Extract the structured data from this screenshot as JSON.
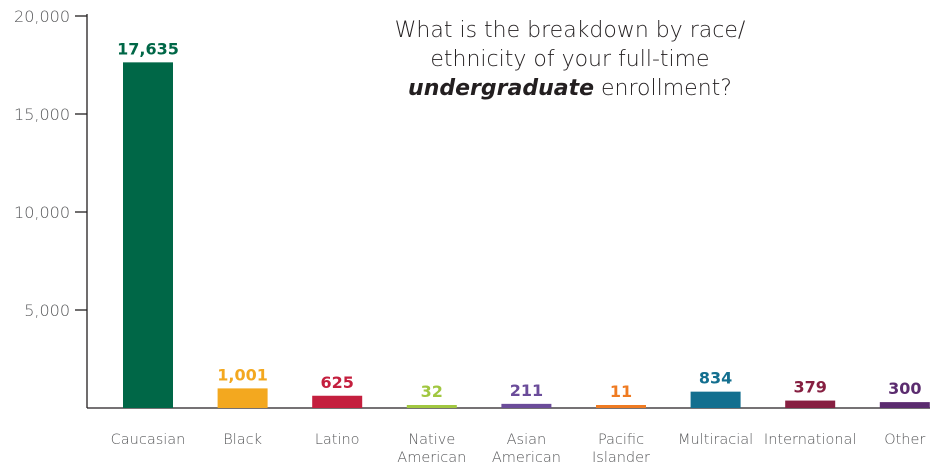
{
  "chart_data": {
    "type": "bar",
    "title": {
      "line1": "What is the breakdown by race/",
      "line2": "ethnicity of your full-time",
      "emphasis": "undergraduate",
      "line3_rest": " enrollment?"
    },
    "xlabel": "",
    "ylabel": "",
    "ylim": [
      0,
      20000
    ],
    "yticks": [
      "20,000",
      "15,000",
      "10,000",
      "5,000"
    ],
    "ytick_values": [
      20000,
      15000,
      10000,
      5000
    ],
    "grid": false,
    "categories": [
      [
        "Caucasian"
      ],
      [
        "Black"
      ],
      [
        "Latino"
      ],
      [
        "Native",
        "American"
      ],
      [
        "Asian",
        "American"
      ],
      [
        "Pacific",
        "Islander"
      ],
      [
        "Multiracial"
      ],
      [
        "International"
      ],
      [
        "Other"
      ]
    ],
    "values": [
      17635,
      1001,
      625,
      32,
      211,
      11,
      834,
      379,
      300
    ],
    "value_labels": [
      "17,635",
      "1,001",
      "625",
      "32",
      "211",
      "11",
      "834",
      "379",
      "300"
    ],
    "bar_colors": [
      "#006747",
      "#f3a81f",
      "#c41f3e",
      "#a1c740",
      "#6b4c9a",
      "#ef7b22",
      "#136f8f",
      "#861f41",
      "#5b2c6f"
    ],
    "label_colors": [
      "#006747",
      "#f3a81f",
      "#c41f3e",
      "#a1c740",
      "#6b4c9a",
      "#ef7b22",
      "#136f8f",
      "#861f41",
      "#5b2c6f"
    ]
  }
}
